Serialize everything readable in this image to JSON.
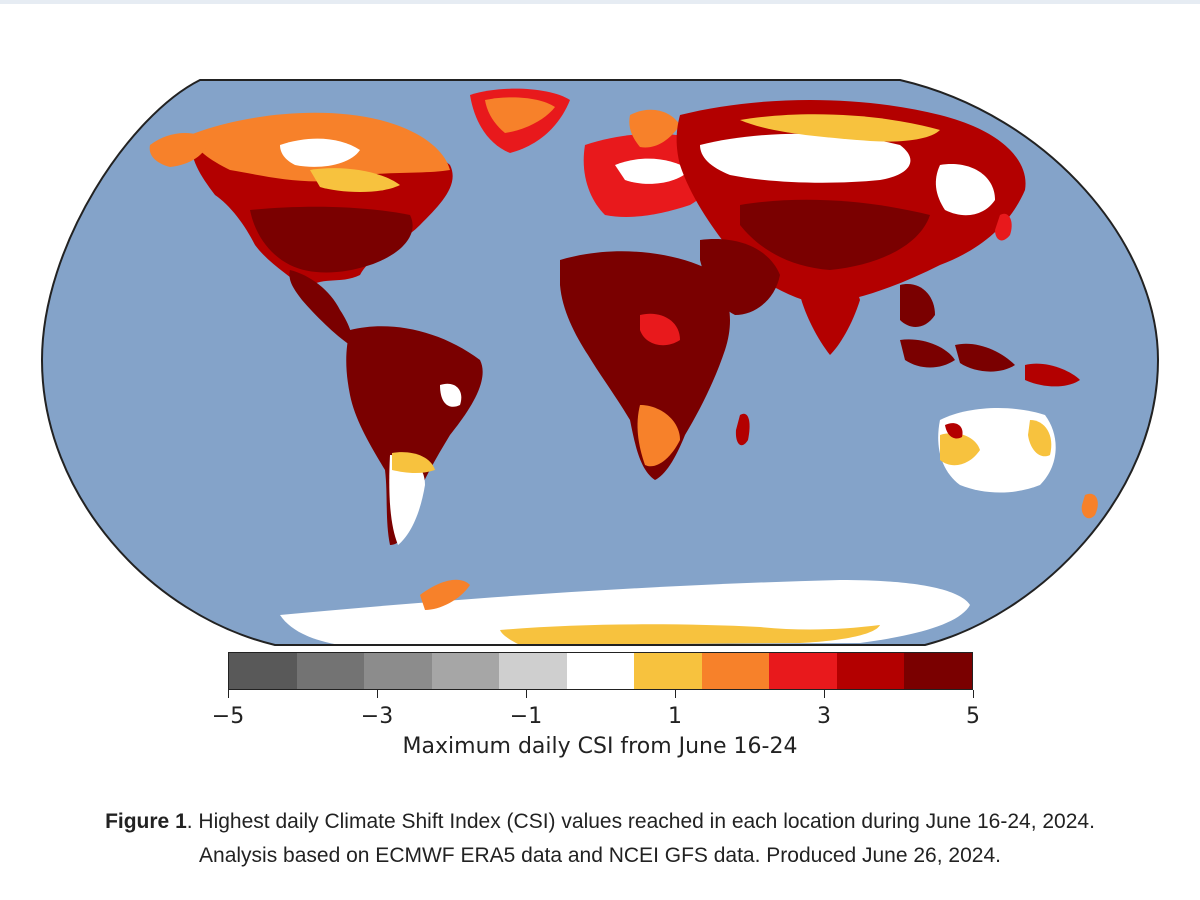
{
  "colorbar": {
    "label": "Maximum daily CSI from June 16-24",
    "min": -5,
    "max": 5,
    "bins": [
      {
        "from": -5,
        "to": -4,
        "color": "#595959"
      },
      {
        "from": -4,
        "to": -3,
        "color": "#737373"
      },
      {
        "from": -3,
        "to": -2,
        "color": "#8c8c8c"
      },
      {
        "from": -2,
        "to": -1,
        "color": "#a6a6a6"
      },
      {
        "from": -1,
        "to": 0,
        "color": "#cfcfcf"
      },
      {
        "from": 0,
        "to": 1,
        "color": "#ffffff"
      },
      {
        "from": 1,
        "to": 2,
        "color": "#f7c23e"
      },
      {
        "from": 2,
        "to": 3,
        "color": "#f7812a"
      },
      {
        "from": 3,
        "to": 4,
        "color": "#e8191c"
      },
      {
        "from": 4,
        "to": 5,
        "color": "#b30000"
      },
      {
        "from": 5,
        "to": 6,
        "color": "#7a0000"
      }
    ],
    "ticks": [
      {
        "value": -5,
        "label": "−5"
      },
      {
        "value": -3,
        "label": "−3"
      },
      {
        "value": -1,
        "label": "−1"
      },
      {
        "value": 1,
        "label": "1"
      },
      {
        "value": 3,
        "label": "3"
      },
      {
        "value": 5,
        "label": "5"
      }
    ]
  },
  "map": {
    "ocean_color": "#84a3c9",
    "border_color": "#222222"
  },
  "caption": {
    "figure_label": "Figure 1",
    "line1": ". Highest daily Climate Shift Index (CSI) values reached in each location during June 16-24, 2024.",
    "line2": "Analysis based on ECMWF ERA5 data and NCEI GFS data. Produced June 26, 2024."
  }
}
